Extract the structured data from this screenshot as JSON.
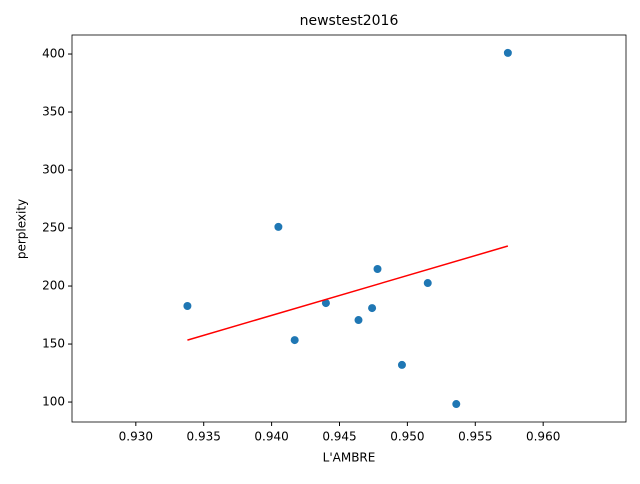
{
  "chart_data": {
    "type": "scatter",
    "title": "newstest2016",
    "x_label": "L'AMBRE",
    "y_label": "perplexity",
    "xlim": [
      0.9253,
      0.9661
    ],
    "ylim": [
      82.8,
      416.4
    ],
    "xticks": [
      {
        "value": 0.93,
        "label": "0.930"
      },
      {
        "value": 0.935,
        "label": "0.935"
      },
      {
        "value": 0.94,
        "label": "0.940"
      },
      {
        "value": 0.945,
        "label": "0.945"
      },
      {
        "value": 0.95,
        "label": "0.950"
      },
      {
        "value": 0.955,
        "label": "0.955"
      },
      {
        "value": 0.96,
        "label": "0.960"
      }
    ],
    "yticks": [
      100,
      150,
      200,
      250,
      300,
      350,
      400
    ],
    "series": [
      {
        "type": "scatter",
        "color": "#1f77b4",
        "x": [
          0.9338,
          0.9405,
          0.9417,
          0.944,
          0.9464,
          0.9474,
          0.9478,
          0.9496,
          0.9515,
          0.9536,
          0.9574
        ],
        "values": [
          182.8,
          251,
          153.4,
          185.3,
          170.7,
          181,
          214.7,
          132,
          202.6,
          98.3,
          401
        ]
      },
      {
        "type": "line",
        "color": "#ff0000",
        "x": [
          0.9338,
          0.9574
        ],
        "values": [
          153.4,
          234.5
        ]
      }
    ]
  }
}
